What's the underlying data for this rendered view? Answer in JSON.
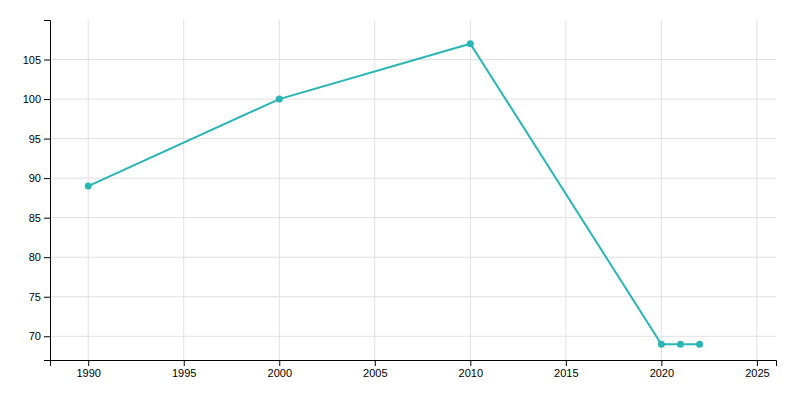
{
  "chart_data": {
    "type": "line",
    "x": [
      1990,
      2000,
      2010,
      2020,
      2021,
      2022
    ],
    "values": [
      89,
      100,
      107,
      69,
      69,
      69
    ],
    "color": "#2ab5b5",
    "marker": "circle",
    "xlim": [
      1988,
      2026
    ],
    "ylim": [
      67,
      110
    ],
    "xticks": [
      1990,
      1995,
      2000,
      2005,
      2010,
      2015,
      2020,
      2025
    ],
    "yticks": [
      70,
      75,
      80,
      85,
      90,
      95,
      100,
      105
    ],
    "grid": true
  }
}
